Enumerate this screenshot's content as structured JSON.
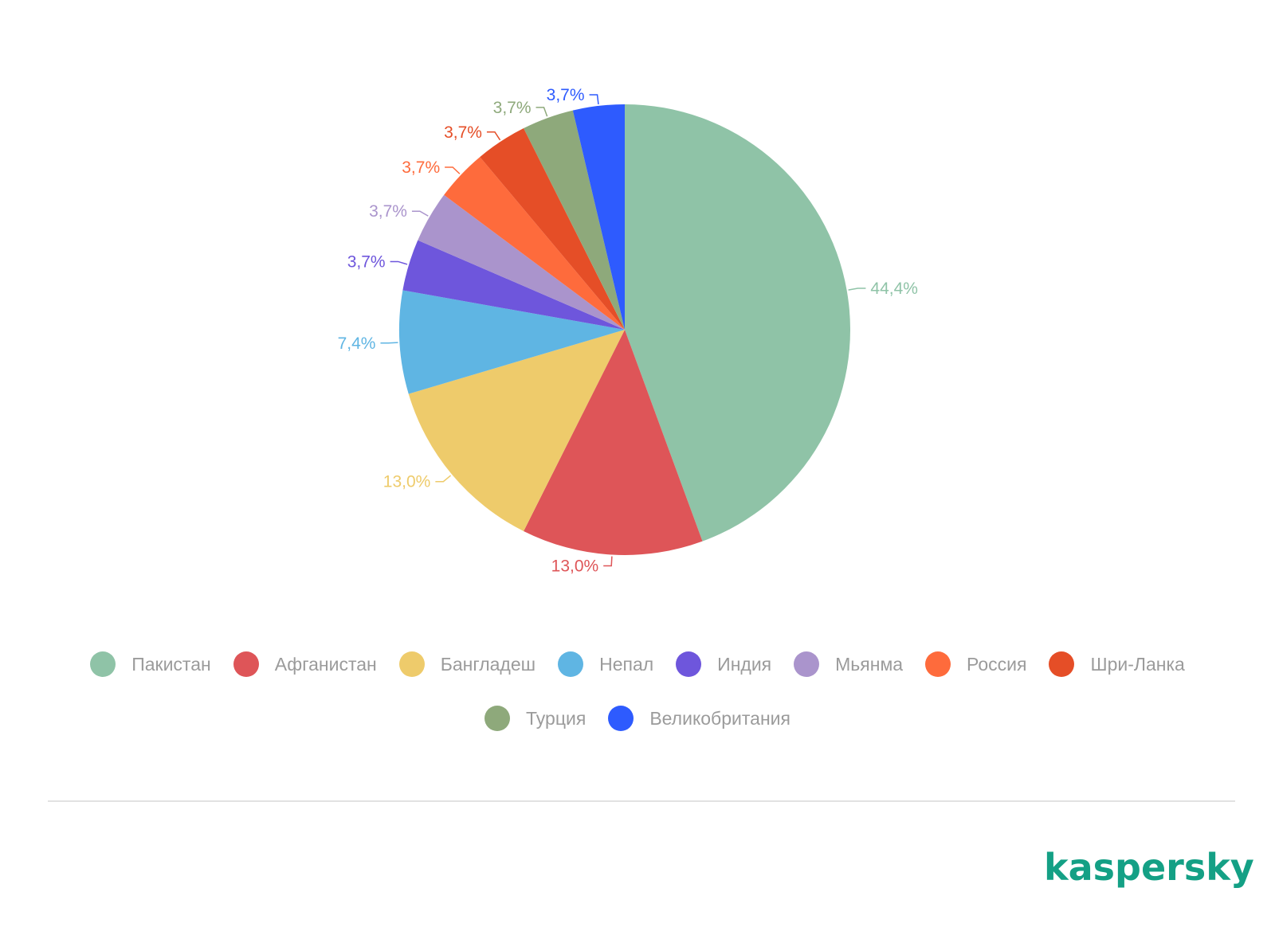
{
  "chart_data": {
    "type": "pie",
    "start_angle_deg": 0,
    "direction": "clockwise",
    "slices": [
      {
        "label": "Пакистан",
        "value": 44.4,
        "value_label": "44,4%",
        "color": "#8fc3a7"
      },
      {
        "label": "Афганистан",
        "value": 13.0,
        "value_label": "13,0%",
        "color": "#de5558"
      },
      {
        "label": "Бангладеш",
        "value": 13.0,
        "value_label": "13,0%",
        "color": "#eecb6b"
      },
      {
        "label": "Непал",
        "value": 7.4,
        "value_label": "7,4%",
        "color": "#5fb5e3"
      },
      {
        "label": "Индия",
        "value": 3.7,
        "value_label": "3,7%",
        "color": "#6e56dc"
      },
      {
        "label": "Мьянма",
        "value": 3.7,
        "value_label": "3,7%",
        "color": "#aa94cc"
      },
      {
        "label": "Россия",
        "value": 3.7,
        "value_label": "3,7%",
        "color": "#fe6b3c"
      },
      {
        "label": "Шри-Ланка",
        "value": 3.7,
        "value_label": "3,7%",
        "color": "#e54e27"
      },
      {
        "label": "Турция",
        "value": 3.7,
        "value_label": "3,7%",
        "color": "#8ea97b"
      },
      {
        "label": "Великобритания",
        "value": 3.7,
        "value_label": "3,7%",
        "color": "#2e5bfe"
      }
    ],
    "legend_position": "bottom"
  },
  "legend": {
    "row1": [
      {
        "label": "Пакистан",
        "color": "#8fc3a7"
      },
      {
        "label": "Афганистан",
        "color": "#de5558"
      },
      {
        "label": "Бангладеш",
        "color": "#eecb6b"
      },
      {
        "label": "Непал",
        "color": "#5fb5e3"
      },
      {
        "label": "Индия",
        "color": "#6e56dc"
      },
      {
        "label": "Мьянма",
        "color": "#aa94cc"
      },
      {
        "label": "Россия",
        "color": "#fe6b3c"
      },
      {
        "label": "Шри-Ланка",
        "color": "#e54e27"
      }
    ],
    "row2": [
      {
        "label": "Турция",
        "color": "#8ea97b"
      },
      {
        "label": "Великобритания",
        "color": "#2e5bfe"
      }
    ]
  },
  "branding": {
    "logo_text": "kaspersky",
    "logo_color": "#14a085"
  }
}
